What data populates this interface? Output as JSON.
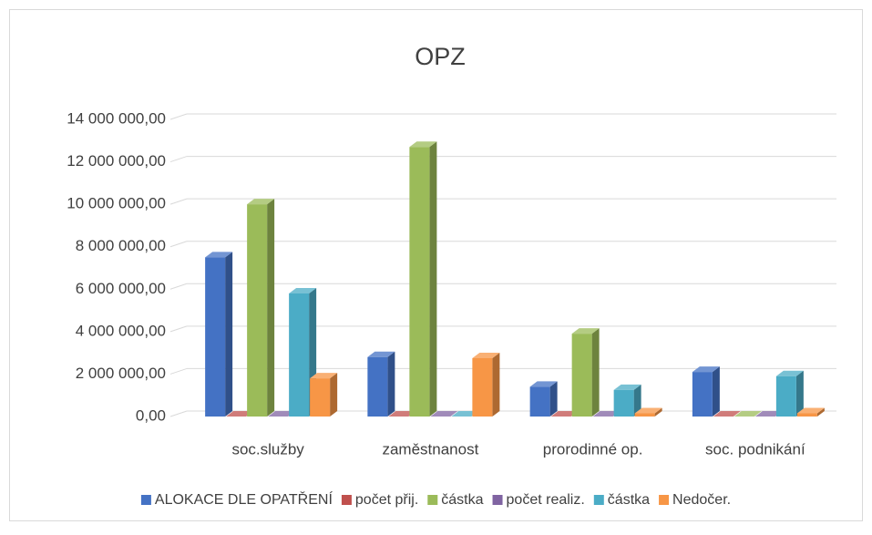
{
  "chart_data": {
    "type": "bar3d",
    "title": "OPZ",
    "categories": [
      "soc.služby",
      "zaměstnanost",
      "prorodinné op.",
      "soc. podnikání"
    ],
    "series": [
      {
        "name": "ALOKACE DLE OPATŘENÍ",
        "color": "#4472c4",
        "values": [
          7500000,
          2800000,
          1400000,
          2100000
        ]
      },
      {
        "name": "počet přij.",
        "color": "#c0504d",
        "values": [
          0,
          0,
          0,
          0
        ]
      },
      {
        "name": "částka",
        "color": "#9bbb59",
        "values": [
          10000000,
          12700000,
          3900000,
          0
        ]
      },
      {
        "name": "počet realiz.",
        "color": "#8064a2",
        "values": [
          0,
          0,
          0,
          0
        ]
      },
      {
        "name": "částka",
        "color": "#4bacc6",
        "values": [
          5800000,
          0,
          1250000,
          1900000
        ]
      },
      {
        "name": "Nedočer.",
        "color": "#f79646",
        "values": [
          1800000,
          2750000,
          150000,
          150000
        ]
      }
    ],
    "ylim": [
      0,
      14000000
    ],
    "yticks": [
      {
        "value": 0,
        "label": "0,00"
      },
      {
        "value": 2000000,
        "label": "2 000 000,00"
      },
      {
        "value": 4000000,
        "label": "4 000 000,00"
      },
      {
        "value": 6000000,
        "label": "6 000 000,00"
      },
      {
        "value": 8000000,
        "label": "8 000 000,00"
      },
      {
        "value": 10000000,
        "label": "10 000 000,00"
      },
      {
        "value": 12000000,
        "label": "12 000 000,00"
      },
      {
        "value": 14000000,
        "label": "14 000 000,00"
      }
    ],
    "grid": true,
    "legend": "bottom"
  }
}
